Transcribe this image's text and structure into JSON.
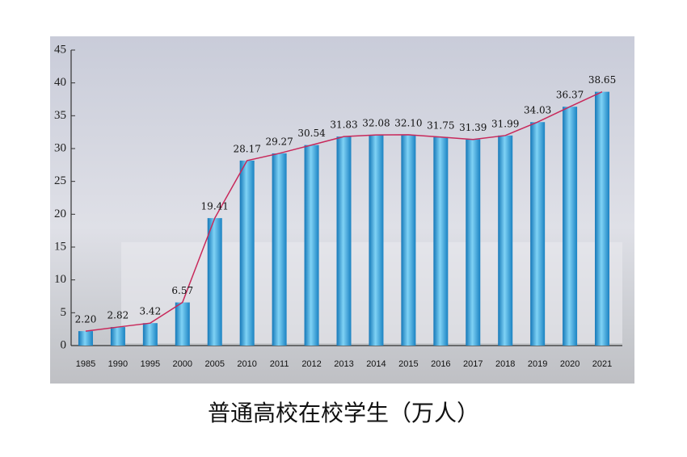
{
  "chart_data": {
    "type": "bar",
    "title": "普通高校在校学生（万人）",
    "categories": [
      "1985",
      "1990",
      "1995",
      "2000",
      "2005",
      "2010",
      "2011",
      "2012",
      "2013",
      "2014",
      "2015",
      "2016",
      "2017",
      "2018",
      "2019",
      "2020",
      "2021"
    ],
    "values": [
      2.2,
      2.82,
      3.42,
      6.57,
      19.41,
      28.17,
      29.27,
      30.54,
      31.83,
      32.08,
      32.1,
      31.75,
      31.39,
      31.99,
      34.03,
      36.37,
      38.65
    ],
    "value_labels": [
      "2.20",
      "2.82",
      "3.42",
      "6.57",
      "19.41",
      "28.17",
      "29.27",
      "30.54",
      "31.83",
      "32.08",
      "32.10",
      "31.75",
      "31.39",
      "31.99",
      "34.03",
      "36.37",
      "38.65"
    ],
    "color": "#2aa8e0",
    "line_color": "#c8285a",
    "ylim": [
      0,
      45
    ],
    "yticks": [
      0,
      5,
      10,
      15,
      20,
      25,
      30,
      35,
      40,
      45
    ],
    "grid": false
  }
}
